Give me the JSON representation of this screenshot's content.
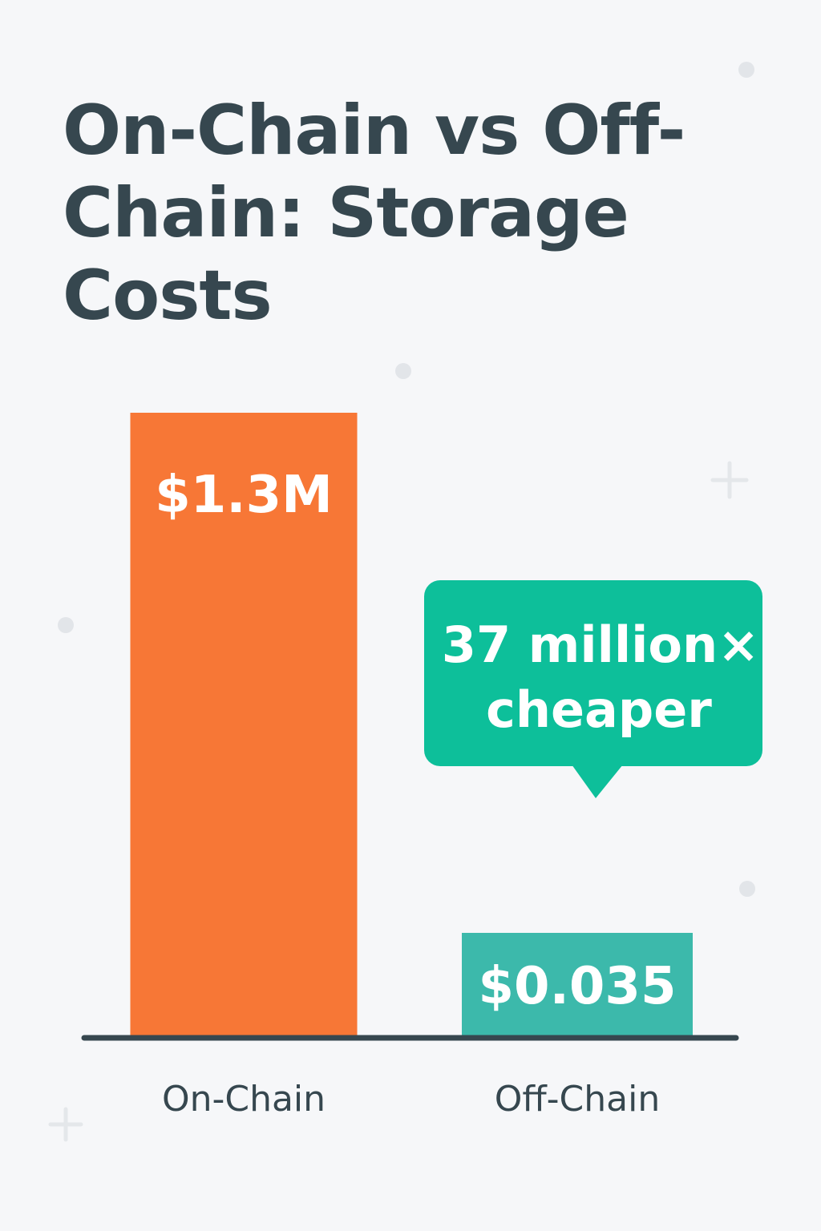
{
  "chart_data": {
    "type": "bar",
    "title": "On-Chain vs Off-Chain: Storage Costs",
    "xlabel": "",
    "ylabel": "",
    "categories": [
      "On-Chain",
      "Off-Chain"
    ],
    "values": [
      1300000,
      0.035
    ],
    "value_labels": [
      "$1.3M",
      "$0.035"
    ],
    "colors": [
      "#f77736",
      "#3cb9ab"
    ],
    "grid": false,
    "annotation": {
      "lines": [
        "37 million×",
        "cheaper"
      ],
      "color": "#0dbf9a"
    }
  },
  "colors": {
    "background": "#f6f7f9",
    "text": "#36474f",
    "axis": "#36474f",
    "decoration": "#e2e5e9"
  }
}
